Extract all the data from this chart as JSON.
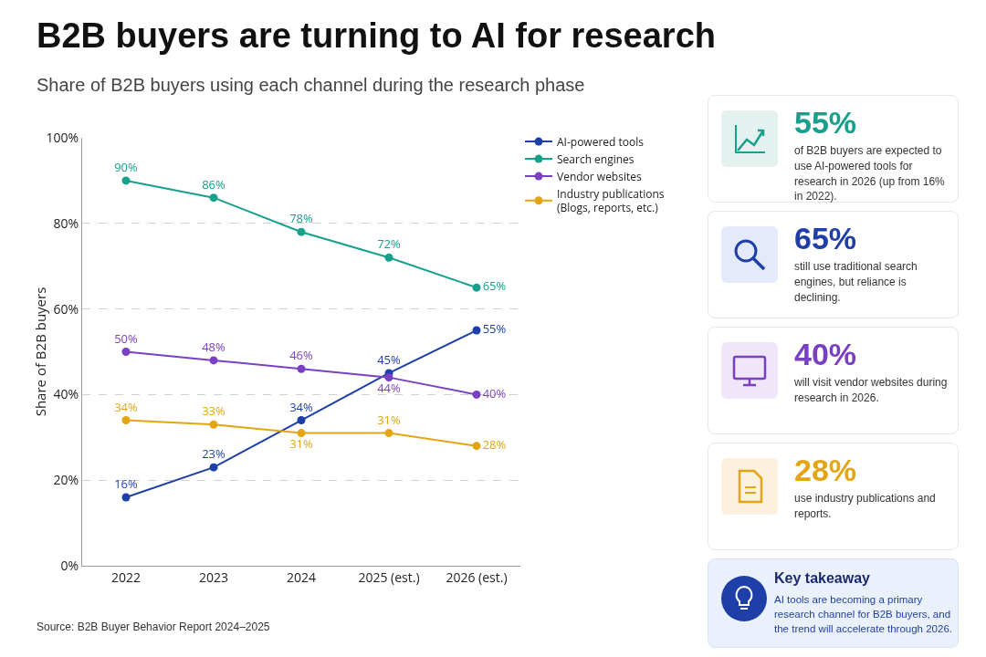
{
  "chart_data": [
    {
      "type": "line",
      "title": "B2B buyers are turning to AI for research",
      "subtitle": "Share of B2B buyers using each channel during the research phase",
      "ylabel": "Share of B2B buyers",
      "categories": [
        "2022",
        "2023",
        "2024",
        "2025 (est.)",
        "2026 (est.)"
      ],
      "series": [
        {
          "name": "AI-powered tools",
          "color": "#1f3fa8",
          "values": [
            16,
            23,
            34,
            45,
            55
          ],
          "value_labels": [
            "16%",
            "23%",
            "34%",
            "45%",
            "55%"
          ]
        },
        {
          "name": "Search engines",
          "color": "#17a08c",
          "values": [
            90,
            86,
            78,
            72,
            65
          ],
          "value_labels": [
            "90%",
            "86%",
            "78%",
            "72%",
            "65%"
          ]
        },
        {
          "name": "Vendor websites",
          "color": "#7a40c4",
          "values": [
            50,
            48,
            46,
            44,
            40
          ],
          "value_labels": [
            "50%",
            "48%",
            "46%",
            "44%",
            "40%"
          ]
        },
        {
          "name": "Industry publications (Blogs, reports, etc.)",
          "color": "#e3a514",
          "values": [
            34,
            33,
            31,
            31,
            28
          ],
          "value_labels": [
            "34%",
            "33%",
            "31%",
            "31%",
            "28%"
          ]
        }
      ],
      "ylim": [
        0,
        100
      ],
      "yticks": [
        {
          "value": 0,
          "label": "0%"
        },
        {
          "value": 20,
          "label": "20%"
        },
        {
          "value": 40,
          "label": "40%"
        },
        {
          "value": 60,
          "label": "60%"
        },
        {
          "value": 80,
          "label": "80%"
        },
        {
          "value": 100,
          "label": "100%"
        }
      ],
      "grid": "y",
      "legend": "top right",
      "marker": "circle",
      "line_style": "solid",
      "annotations": [
        "Source: B2B Buyer Behavior Report 2024–2025"
      ]
    },
    {
      "type": "other",
      "annotations": [
        "55%",
        "of B2B buyers are expected to use AI-powered tools for research in 2026 (up from 16% in 2022).",
        "65%",
        "still use traditional search engines, but reliance is declining.",
        "40%",
        "will visit vendor websites during research in 2026.",
        "28%",
        "use industry publications and reports.",
        "Key takeaway",
        "AI tools are becoming a primary research channel for B2B buyers, and the trend will accelerate through 2026."
      ]
    }
  ]
}
